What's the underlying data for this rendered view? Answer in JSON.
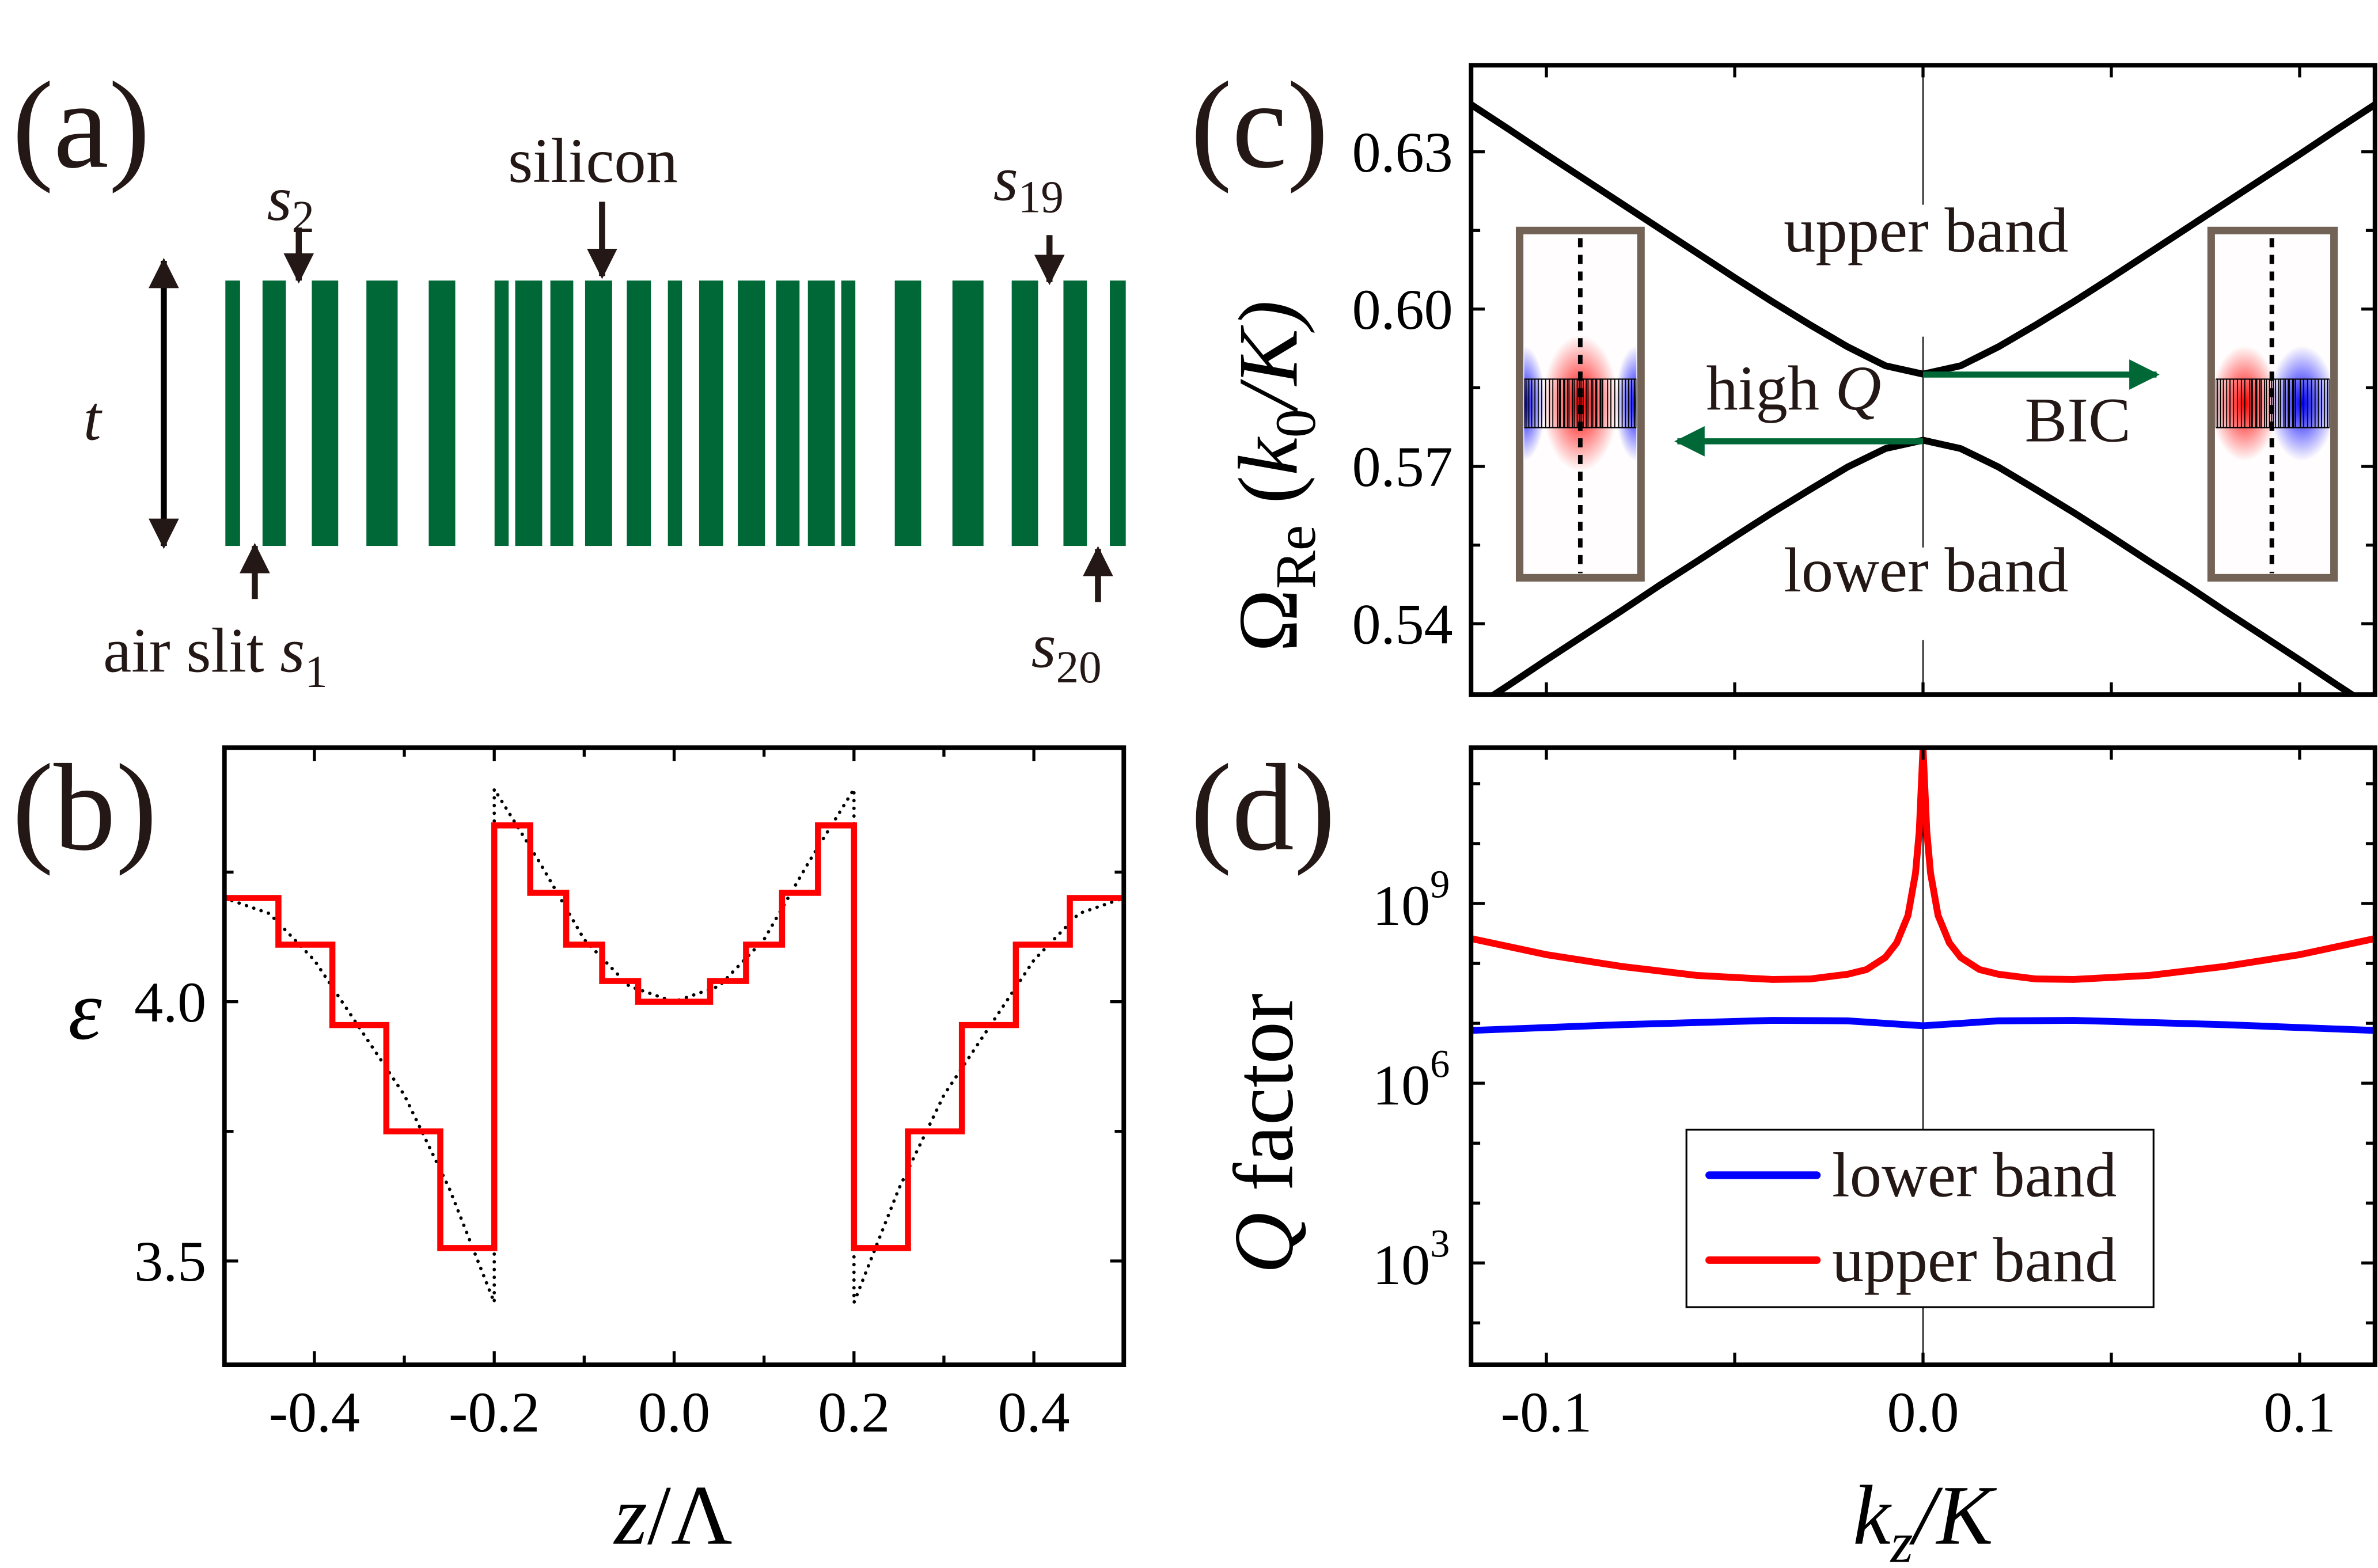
{
  "colors": {
    "silicon": "#006837",
    "step_profile": "#ff0000",
    "lower_band": "#0000ff",
    "upper_band": "#ff0000",
    "band_curve": "#000000",
    "arrow_green": "#006837",
    "inset_frame": "#736357"
  },
  "panel_a": {
    "label": "(a)",
    "silicon": "silicon",
    "t": "t",
    "air_slit": "air slit ",
    "s": "s",
    "s1_sub": "1",
    "s2_sub": "2",
    "s19_sub": "19",
    "s20_sub": "20"
  },
  "chart_data": [
    {
      "panel": "(b)",
      "type": "line",
      "xlabel": {
        "var": "z",
        "rest": "/Λ"
      },
      "ylabel": "ε",
      "xlim": [
        -0.5,
        0.5
      ],
      "ylim": [
        3.3,
        4.49
      ],
      "xticks": [
        "-0.4",
        "-0.2",
        "0.0",
        "0.2",
        "0.4"
      ],
      "xtick_values": [
        -0.4,
        -0.2,
        0.0,
        0.2,
        0.4
      ],
      "yticks": [
        "3.5",
        "4.0"
      ],
      "ytick_values": [
        3.5,
        4.0
      ],
      "grid": false,
      "step_series": {
        "style": "solid-red-step",
        "edges": [
          -0.5,
          -0.44,
          -0.38,
          -0.32,
          -0.26,
          -0.2,
          -0.16,
          -0.12,
          -0.08,
          -0.04,
          0.04,
          0.08,
          0.12,
          0.16,
          0.2,
          0.26,
          0.32,
          0.38,
          0.44,
          0.5
        ],
        "levels": [
          4.2,
          4.11,
          3.955,
          3.75,
          3.525,
          4.34,
          4.21,
          4.11,
          4.04,
          4.0,
          4.04,
          4.11,
          4.21,
          4.34,
          3.525,
          3.75,
          3.955,
          4.11,
          4.2
        ]
      },
      "continuous_series": {
        "style": "dotted-black",
        "x": [
          -0.5,
          -0.45,
          -0.4,
          -0.35,
          -0.3,
          -0.25,
          -0.2,
          -0.2,
          -0.15,
          -0.1,
          -0.05,
          0,
          0.05,
          0.1,
          0.15,
          0.2,
          0.2,
          0.25,
          0.3,
          0.35,
          0.4,
          0.45,
          0.5
        ],
        "y": [
          4.2,
          4.17,
          4.08,
          3.95,
          3.82,
          3.64,
          3.42,
          4.41,
          4.27,
          4.12,
          4.03,
          4.0,
          4.03,
          4.12,
          4.27,
          4.41,
          3.42,
          3.64,
          3.82,
          3.95,
          4.08,
          4.17,
          4.2
        ]
      }
    },
    {
      "panel": "(c)",
      "type": "line",
      "ylabel": {
        "omega": "Ω",
        "omega_sub": "Re",
        "open": " (",
        "k": "k",
        "k_sub": "0",
        "rest": "/K)"
      },
      "xlim": [
        -0.12,
        0.12
      ],
      "ylim": [
        0.5265,
        0.6465
      ],
      "yticks": [
        "0.54",
        "0.57",
        "0.60",
        "0.63"
      ],
      "ytick_values": [
        0.54,
        0.57,
        0.6,
        0.63
      ],
      "xtick_values": [
        -0.1,
        -0.05,
        0.0,
        0.05,
        0.1
      ],
      "k": [
        -0.12,
        -0.11,
        -0.1,
        -0.09,
        -0.08,
        -0.07,
        -0.06,
        -0.05,
        -0.04,
        -0.03,
        -0.02,
        -0.01,
        0,
        0.01,
        0.02,
        0.03,
        0.04,
        0.05,
        0.06,
        0.07,
        0.08,
        0.09,
        0.1,
        0.11,
        0.12
      ],
      "series": [
        {
          "values": [
            0.639,
            0.6343,
            0.6295,
            0.6248,
            0.6201,
            0.6154,
            0.6107,
            0.606,
            0.6014,
            0.597,
            0.5928,
            0.5892,
            0.5876,
            0.5892,
            0.5928,
            0.597,
            0.6014,
            0.606,
            0.6107,
            0.6154,
            0.6201,
            0.6248,
            0.6295,
            0.6343,
            0.639
          ]
        },
        {
          "values": [
            0.5236,
            0.5283,
            0.5331,
            0.5378,
            0.5425,
            0.5473,
            0.5519,
            0.5566,
            0.5612,
            0.5656,
            0.5699,
            0.5734,
            0.575,
            0.5734,
            0.5699,
            0.5656,
            0.5612,
            0.5566,
            0.5519,
            0.5473,
            0.5425,
            0.5378,
            0.5331,
            0.5283,
            0.5236
          ]
        }
      ],
      "annotations": {
        "upper": "upper band",
        "lower": "lower band",
        "high": "high ",
        "Q": "Q",
        "bic": "BIC"
      }
    },
    {
      "panel": "(d)",
      "type": "line",
      "yscale": "log",
      "ylabel": {
        "Q": "Q",
        "rest": " factor"
      },
      "xlabel": {
        "k": "k",
        "k_sub": "z",
        "rest": "/K"
      },
      "xlim": [
        -0.12,
        0.12
      ],
      "ylim": [
        20,
        400000000000.0
      ],
      "xticks": [
        "-0.1",
        "0.0",
        "0.1"
      ],
      "xtick_values": [
        -0.1,
        0.0,
        0.1
      ],
      "minor_xtick_values": [
        -0.05,
        0.05
      ],
      "yticks": [
        {
          "base": "10",
          "exp": "9",
          "value": 1000000000.0
        },
        {
          "base": "10",
          "exp": "6",
          "value": 1000000.0
        },
        {
          "base": "10",
          "exp": "3",
          "value": 1000.0
        }
      ],
      "legend": {
        "position": "lower-center",
        "entries": [
          "lower band",
          "upper band"
        ]
      },
      "series": [
        {
          "name": "lower band",
          "k": [
            -0.12,
            -0.08,
            -0.04,
            -0.02,
            -0.01,
            0,
            0.01,
            0.02,
            0.04,
            0.08,
            0.12
          ],
          "values": [
            7600000.0,
            9500000.0,
            11200000.0,
            11000000.0,
            10000000.0,
            9100000.0,
            10000000.0,
            11000000.0,
            11200000.0,
            9500000.0,
            7600000.0
          ]
        },
        {
          "name": "upper band",
          "k": [
            -0.12,
            -0.1,
            -0.08,
            -0.06,
            -0.04,
            -0.03,
            -0.02,
            -0.015,
            -0.01,
            -0.007,
            -0.004,
            -0.002,
            -0.001,
            0,
            0.001,
            0.002,
            0.004,
            0.007,
            0.01,
            0.015,
            0.02,
            0.03,
            0.04,
            0.06,
            0.08,
            0.1,
            0.12
          ],
          "values": [
            260000000.0,
            140000000.0,
            89000000.0,
            63000000.0,
            54000000.0,
            55000000.0,
            66000000.0,
            79000000.0,
            126000000.0,
            220000000.0,
            630000000.0,
            3200000000.0,
            16000000000.0,
            400000000000.0,
            16000000000.0,
            3200000000.0,
            630000000.0,
            220000000.0,
            126000000.0,
            79000000.0,
            66000000.0,
            55000000.0,
            54000000.0,
            63000000.0,
            89000000.0,
            140000000.0,
            260000000.0
          ]
        }
      ]
    }
  ]
}
